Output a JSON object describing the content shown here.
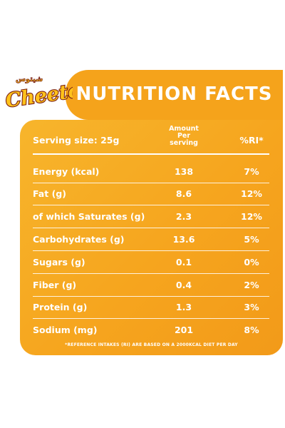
{
  "brand": {
    "arabic": "شيتوس",
    "name": "Cheetos"
  },
  "header": {
    "title": "NUTRITION FACTS"
  },
  "table": {
    "serving_label": "Serving size: 25g",
    "amount_header": [
      "Amount",
      "Per",
      "serving"
    ],
    "ri_header": "%RI*",
    "rows": [
      {
        "name": "Energy (kcal)",
        "amount": "138",
        "ri": "7%"
      },
      {
        "name": "Fat (g)",
        "amount": "8.6",
        "ri": "12%"
      },
      {
        "name": "of which Saturates (g)",
        "amount": "2.3",
        "ri": "12%"
      },
      {
        "name": "Carbohydrates (g)",
        "amount": "13.6",
        "ri": "5%"
      },
      {
        "name": "Sugars (g)",
        "amount": "0.1",
        "ri": "0%"
      },
      {
        "name": "Fiber (g)",
        "amount": "0.4",
        "ri": "2%"
      },
      {
        "name": "Protein (g)",
        "amount": "1.3",
        "ri": "3%"
      },
      {
        "name": "Sodium (mg)",
        "amount": "201",
        "ri": "8%"
      }
    ],
    "footnote": "*REFERENCE INTAKES (RI) ARE BASED ON A 2000KCAL DIET PER DAY"
  },
  "colors": {
    "panel": "#f6a51e",
    "header": "#f5a31b",
    "logo_orange": "#f08c1a",
    "logo_outline": "#7a1f12"
  }
}
